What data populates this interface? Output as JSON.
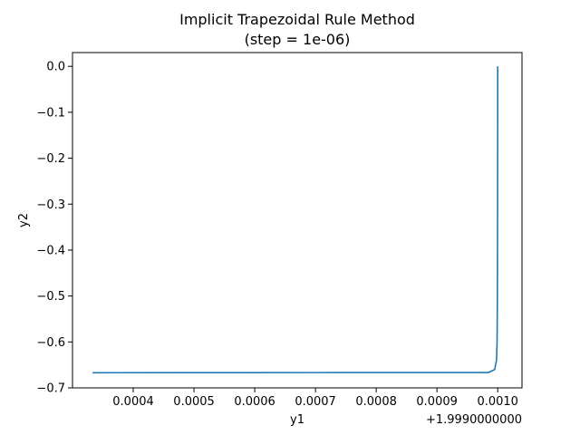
{
  "chart_data": {
    "type": "line",
    "title_line1": "Implicit Trapezoidal Rule Method",
    "title_line2": "(step = 1e-06)",
    "xlabel": "y1",
    "ylabel": "y2",
    "x_offset_label": "+1.9990000000",
    "xlim": [
      0.0003,
      0.00104
    ],
    "ylim": [
      -0.7,
      0.03
    ],
    "xticks": [
      0.0004,
      0.0005,
      0.0006,
      0.0007,
      0.0008,
      0.0009,
      0.001
    ],
    "xtick_labels": [
      "0.0004",
      "0.0005",
      "0.0006",
      "0.0007",
      "0.0008",
      "0.0009",
      "0.0010"
    ],
    "yticks": [
      0.0,
      -0.1,
      -0.2,
      -0.3,
      -0.4,
      -0.5,
      -0.6,
      -0.7
    ],
    "ytick_labels": [
      "0.0",
      "−0.1",
      "−0.2",
      "−0.3",
      "−0.4",
      "−0.5",
      "−0.6",
      "−0.7"
    ],
    "grid": false,
    "series": [
      {
        "color": "#1f77b4",
        "x": [
          0.000333,
          0.0005,
          0.0007,
          0.0009,
          0.000985,
          0.000995,
          0.000998,
          0.000999,
          0.0009995,
          0.0009998,
          0.001,
          0.001
        ],
        "y": [
          -0.667,
          -0.6668,
          -0.6667,
          -0.6666,
          -0.6665,
          -0.66,
          -0.64,
          -0.6,
          -0.5,
          -0.3,
          -0.1,
          0.0
        ]
      }
    ]
  }
}
